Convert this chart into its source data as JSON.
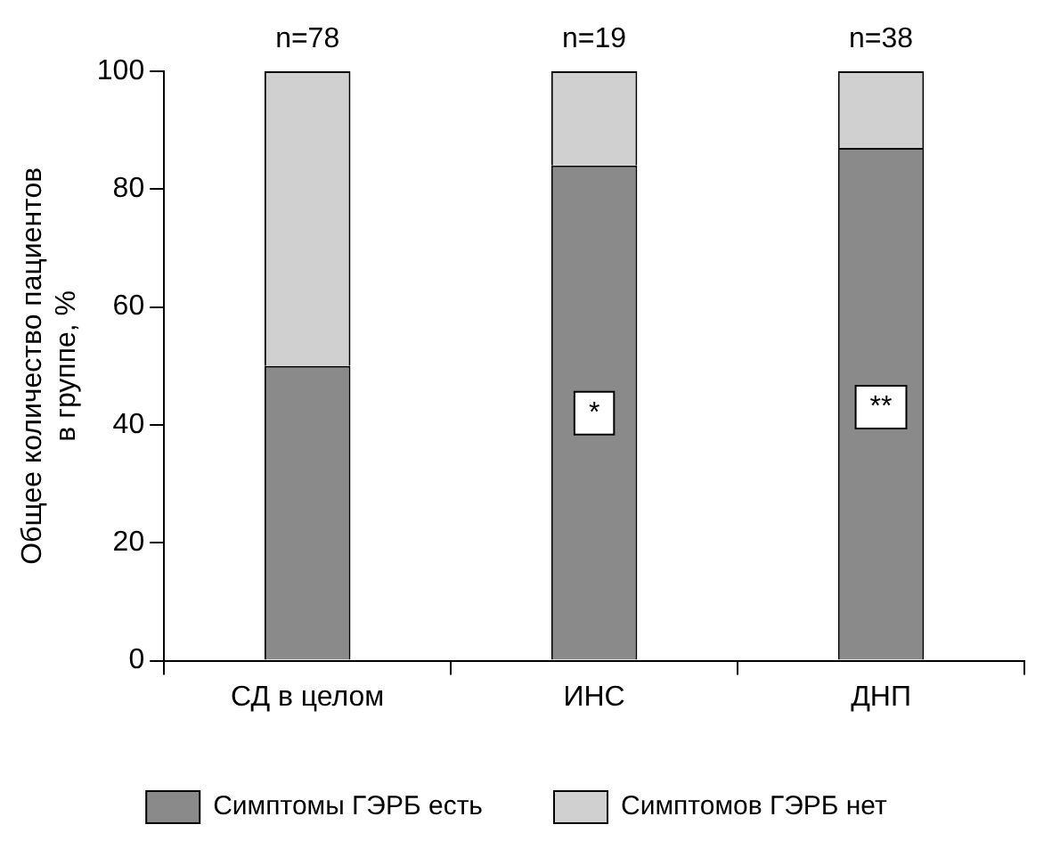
{
  "chart_data": {
    "type": "bar",
    "stacked": true,
    "ylabel": "Общее количество пациентов\nв группе, %",
    "categories": [
      "СД в целом",
      "ИНС",
      "ДНП"
    ],
    "series": [
      {
        "name": "Симптомы ГЭРБ есть",
        "color": "#8a8a8a",
        "values": [
          50,
          84,
          87
        ]
      },
      {
        "name": "Симптомов ГЭРБ нет",
        "color": "#d0d0d0",
        "values": [
          50,
          16,
          13
        ]
      }
    ],
    "ylim": [
      0,
      100
    ],
    "yticks": [
      0,
      20,
      40,
      60,
      80,
      100
    ],
    "grid": false,
    "legend": "bottom",
    "annotations": [
      "n=78",
      "n=19",
      "n=38",
      {
        "text": "*",
        "x": "ИНС",
        "y": 42
      },
      {
        "text": "**",
        "x": "ДНП",
        "y": 43
      }
    ]
  }
}
